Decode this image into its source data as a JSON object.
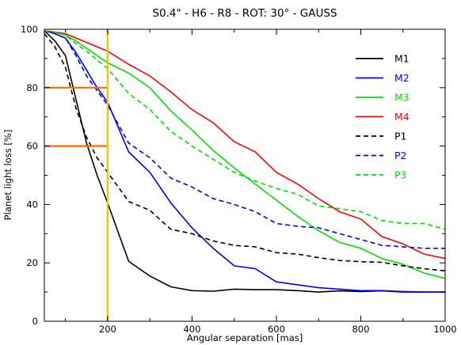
{
  "chart_data": {
    "type": "line",
    "title": "S0.4\" - H6 - R8 - ROT: 30° - GAUSS",
    "xlabel": "Angular separation [mas]",
    "ylabel": "Planet light loss [%]",
    "xlim": [
      50,
      1000
    ],
    "ylim": [
      0,
      100
    ],
    "xticks": [
      "200",
      "400",
      "600",
      "800",
      "1000"
    ],
    "yticks": [
      "0",
      "20",
      "40",
      "60",
      "80",
      "100"
    ],
    "grid": false,
    "legend_position": "top-right",
    "reference_lines": {
      "vertical_x": 200,
      "vertical_color": "#ffc000",
      "horizontal": [
        {
          "y": 80,
          "x_from": 50,
          "x_to": 200
        },
        {
          "y": 60,
          "x_from": 50,
          "x_to": 200
        }
      ],
      "horizontal_color": "#ff6a00"
    },
    "series": [
      {
        "name": "M1",
        "color": "#000000",
        "dash": "solid",
        "x": [
          50,
          75,
          100,
          125,
          150,
          175,
          200,
          250,
          300,
          350,
          400,
          450,
          500,
          550,
          600,
          650,
          700,
          750,
          800,
          850,
          900,
          950,
          1000
        ],
        "y": [
          99.5,
          96,
          91,
          76,
          61,
          50,
          40.5,
          20.5,
          15.5,
          11.8,
          10.5,
          10.3,
          11,
          10.8,
          10.8,
          10.5,
          10,
          10.4,
          10.2,
          10.4,
          10,
          10,
          10
        ]
      },
      {
        "name": "M2",
        "color": "#0000ff",
        "dash": "solid",
        "x": [
          50,
          75,
          100,
          125,
          150,
          175,
          200,
          250,
          300,
          350,
          400,
          450,
          500,
          550,
          600,
          650,
          700,
          750,
          800,
          850,
          900,
          950,
          1000
        ],
        "y": [
          99.5,
          98.5,
          97,
          92,
          86,
          80,
          75,
          58,
          51,
          40.5,
          32,
          25,
          19,
          18,
          13.5,
          12.5,
          11.5,
          11,
          10.5,
          10.5,
          10.2,
          10,
          10
        ]
      },
      {
        "name": "M3",
        "color": "#00e000",
        "dash": "solid",
        "x": [
          50,
          75,
          100,
          125,
          150,
          175,
          200,
          250,
          300,
          350,
          400,
          450,
          500,
          550,
          600,
          650,
          700,
          750,
          800,
          850,
          900,
          950,
          1000
        ],
        "y": [
          99.5,
          99,
          98,
          96,
          93.5,
          91,
          88.5,
          85,
          80,
          72,
          65.5,
          58.5,
          52.5,
          47,
          41.5,
          36,
          31,
          27,
          25,
          21.5,
          19.5,
          16.5,
          14.7
        ]
      },
      {
        "name": "M4",
        "color": "#ff0000",
        "dash": "solid",
        "x": [
          50,
          75,
          100,
          125,
          150,
          175,
          200,
          250,
          300,
          350,
          400,
          450,
          500,
          550,
          600,
          650,
          700,
          750,
          800,
          850,
          900,
          950,
          1000
        ],
        "y": [
          99.5,
          99,
          98.5,
          97,
          95.5,
          94,
          92.5,
          88,
          84,
          78.5,
          72.5,
          68,
          61.5,
          58,
          51,
          47,
          42,
          37.5,
          35,
          29,
          26.5,
          23,
          21.5
        ]
      },
      {
        "name": "P1",
        "color": "#000000",
        "dash": "dashed",
        "x": [
          50,
          75,
          100,
          125,
          150,
          175,
          200,
          250,
          300,
          350,
          400,
          450,
          500,
          550,
          600,
          650,
          700,
          750,
          800,
          850,
          900,
          950,
          1000
        ],
        "y": [
          98.5,
          94,
          87,
          73,
          63,
          56,
          51,
          41,
          38,
          31.5,
          30,
          27.5,
          26,
          25.5,
          23.5,
          23,
          21.8,
          20.8,
          20.4,
          20.2,
          19,
          18,
          17.3
        ]
      },
      {
        "name": "P2",
        "color": "#0000ff",
        "dash": "dashed",
        "x": [
          50,
          75,
          100,
          125,
          150,
          175,
          200,
          250,
          300,
          350,
          400,
          450,
          500,
          550,
          600,
          650,
          700,
          750,
          800,
          850,
          900,
          950,
          1000
        ],
        "y": [
          99.5,
          98.5,
          97,
          91,
          84,
          79,
          74,
          61,
          56,
          49,
          46,
          42,
          40,
          37.5,
          33.5,
          32.5,
          32,
          30,
          28,
          26,
          25.5,
          25,
          25
        ]
      },
      {
        "name": "P3",
        "color": "#00e000",
        "dash": "dashed",
        "x": [
          50,
          75,
          100,
          125,
          150,
          175,
          200,
          250,
          300,
          350,
          400,
          450,
          500,
          550,
          600,
          650,
          700,
          750,
          800,
          850,
          900,
          950,
          1000
        ],
        "y": [
          99.5,
          99,
          98,
          95,
          92.5,
          89.5,
          86.5,
          78,
          72.5,
          65,
          60,
          55.5,
          51,
          48,
          45.5,
          43.5,
          39.5,
          38.5,
          37.5,
          34.5,
          33.5,
          33.5,
          31.5
        ]
      }
    ]
  }
}
